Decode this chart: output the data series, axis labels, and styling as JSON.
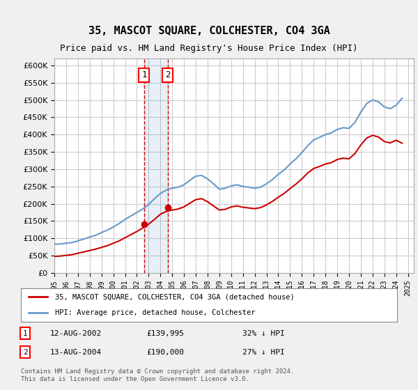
{
  "title": "35, MASCOT SQUARE, COLCHESTER, CO4 3GA",
  "subtitle": "Price paid vs. HM Land Registry's House Price Index (HPI)",
  "legend_line1": "35, MASCOT SQUARE, COLCHESTER, CO4 3GA (detached house)",
  "legend_line2": "HPI: Average price, detached house, Colchester",
  "footer": "Contains HM Land Registry data © Crown copyright and database right 2024.\nThis data is licensed under the Open Government Licence v3.0.",
  "sale1_label": "1",
  "sale1_date": "12-AUG-2002",
  "sale1_price": "£139,995",
  "sale1_hpi": "32% ↓ HPI",
  "sale2_label": "2",
  "sale2_date": "13-AUG-2004",
  "sale2_price": "£190,000",
  "sale2_hpi": "27% ↓ HPI",
  "sale1_year": 2002.62,
  "sale2_year": 2004.62,
  "sale1_value": 139995,
  "sale2_value": 190000,
  "ylim": [
    0,
    620000
  ],
  "yticks": [
    0,
    50000,
    100000,
    150000,
    200000,
    250000,
    300000,
    350000,
    400000,
    450000,
    500000,
    550000,
    600000
  ],
  "xlim_start": 1995,
  "xlim_end": 2025.5,
  "bg_color": "#f0f0f0",
  "plot_bg_color": "#ffffff",
  "grid_color": "#cccccc",
  "red_color": "#cc0000",
  "blue_color": "#6699cc"
}
